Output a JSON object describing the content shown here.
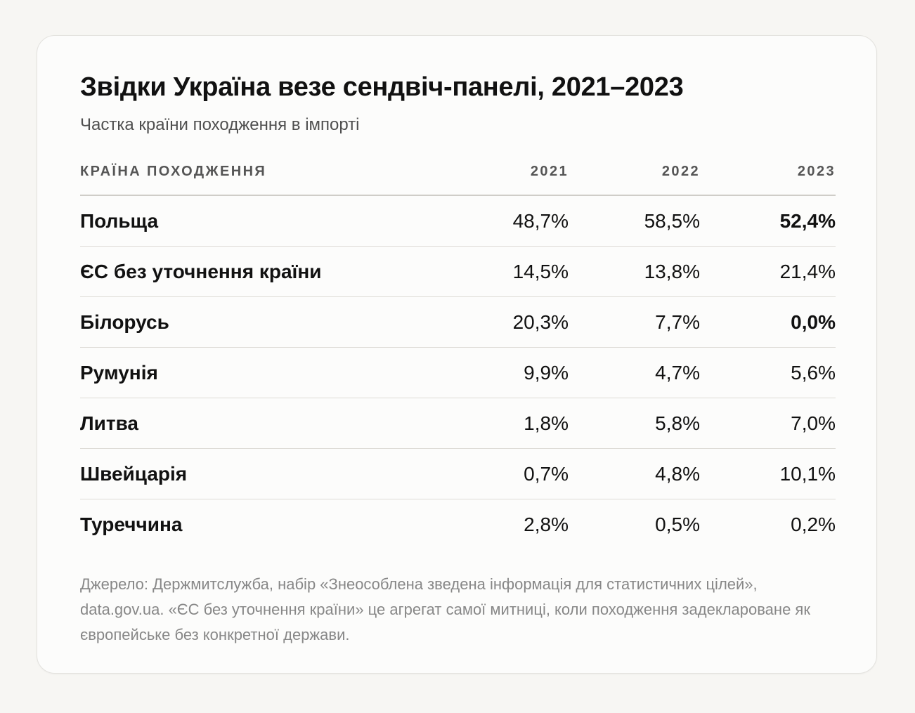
{
  "title": "Звідки Україна везе сендвіч-панелі, 2021–2023",
  "subtitle": "Частка країни походження в імпорті",
  "source": "Джерело: Держмитслужба, набір «Знеособлена зведена інформація для статистичних цілей», data.gov.ua. «ЄС без уточнення країни» це агрегат самої митниці, коли походження задекларoване як європейське без конкретної держави.",
  "chart_data": {
    "type": "table",
    "title": "Звідки Україна везе сендвіч-панелі, 2021–2023",
    "subtitle": "Частка країни походження в імпорті",
    "columns": [
      "КРАЇНА ПОХОДЖЕННЯ",
      "2021",
      "2022",
      "2023"
    ],
    "rows": [
      {
        "country": "Польща",
        "values": [
          "48,7%",
          "58,5%",
          "52,4%"
        ],
        "emphasis": [
          false,
          false,
          true
        ]
      },
      {
        "country": "ЄС без уточнення країни",
        "values": [
          "14,5%",
          "13,8%",
          "21,4%"
        ],
        "emphasis": [
          false,
          false,
          false
        ]
      },
      {
        "country": "Білорусь",
        "values": [
          "20,3%",
          "7,7%",
          "0,0%"
        ],
        "emphasis": [
          false,
          false,
          true
        ]
      },
      {
        "country": "Румунія",
        "values": [
          "9,9%",
          "4,7%",
          "5,6%"
        ],
        "emphasis": [
          false,
          false,
          false
        ]
      },
      {
        "country": "Литва",
        "values": [
          "1,8%",
          "5,8%",
          "7,0%"
        ],
        "emphasis": [
          false,
          false,
          false
        ]
      },
      {
        "country": "Швейцарія",
        "values": [
          "0,7%",
          "4,8%",
          "10,1%"
        ],
        "emphasis": [
          false,
          false,
          false
        ]
      },
      {
        "country": "Туреччина",
        "values": [
          "2,8%",
          "0,5%",
          "0,2%"
        ],
        "emphasis": [
          false,
          false,
          false
        ]
      }
    ]
  }
}
